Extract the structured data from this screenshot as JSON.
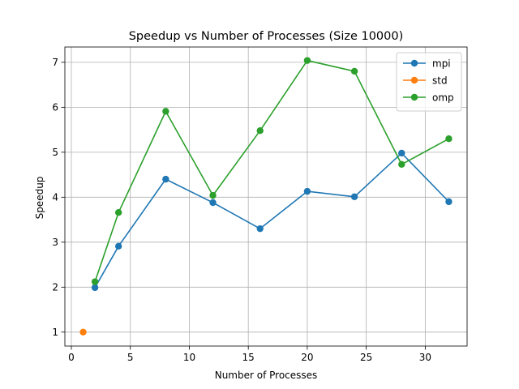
{
  "chart_data": {
    "type": "line",
    "title": "Speedup vs Number of Processes (Size 10000)",
    "xlabel": "Number of Processes",
    "ylabel": "Speedup",
    "xlim": [
      -0.55,
      33.55
    ],
    "ylim": [
      0.69,
      7.34
    ],
    "xticks": [
      0,
      5,
      10,
      15,
      20,
      25,
      30
    ],
    "yticks": [
      1,
      2,
      3,
      4,
      5,
      6,
      7
    ],
    "grid": true,
    "legend_position": "top-right",
    "series": [
      {
        "name": "mpi",
        "color": "#1f77b4",
        "x": [
          2,
          4,
          8,
          12,
          16,
          20,
          24,
          28,
          32
        ],
        "y": [
          1.99,
          2.91,
          4.4,
          3.88,
          3.3,
          4.13,
          4.01,
          4.98,
          3.9
        ]
      },
      {
        "name": "std",
        "color": "#ff7f0e",
        "x": [
          1
        ],
        "y": [
          1.0
        ]
      },
      {
        "name": "omp",
        "color": "#2ca02c",
        "x": [
          2,
          4,
          8,
          12,
          16,
          20,
          24,
          28,
          32
        ],
        "y": [
          2.12,
          3.66,
          5.91,
          4.04,
          5.48,
          7.04,
          6.8,
          4.73,
          5.3
        ]
      }
    ]
  }
}
